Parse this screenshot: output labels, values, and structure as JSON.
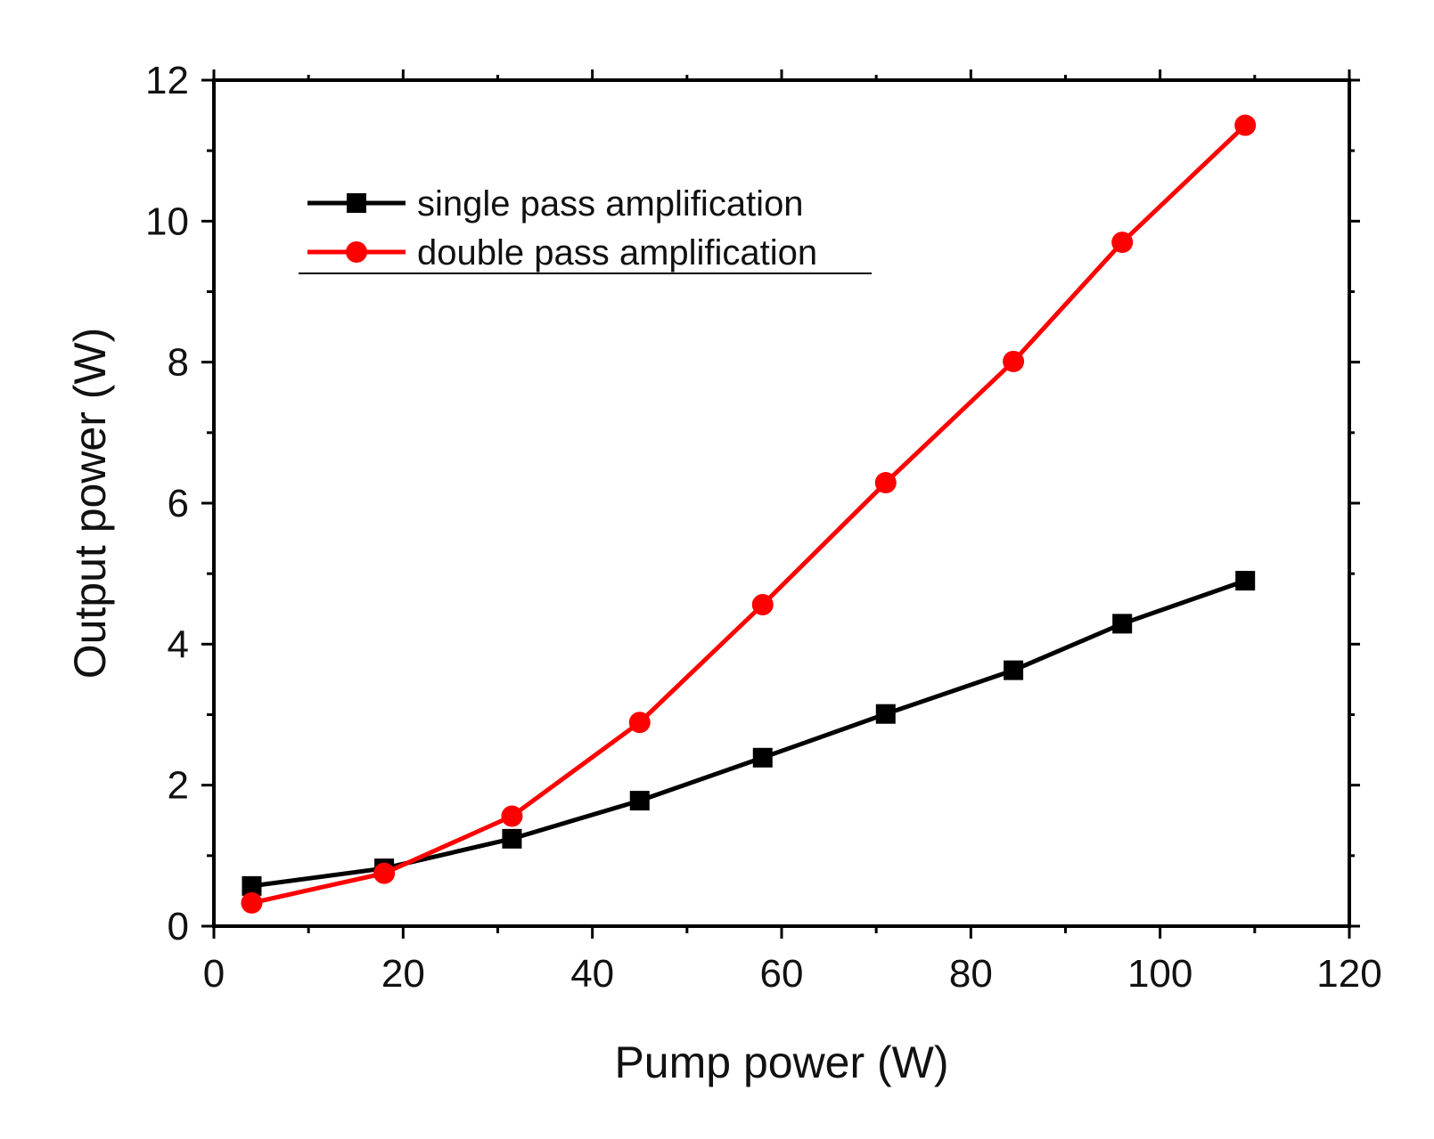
{
  "chart_data": {
    "type": "line",
    "title": "",
    "xlabel": "Pump power (W)",
    "ylabel": "Output power (W)",
    "xlim": [
      0,
      120
    ],
    "ylim": [
      0,
      12
    ],
    "xticks": [
      0,
      20,
      40,
      60,
      80,
      100,
      120
    ],
    "yticks": [
      0,
      2,
      4,
      6,
      8,
      10,
      12
    ],
    "xtick_labels": [
      "0",
      "20",
      "40",
      "60",
      "80",
      "100",
      "120"
    ],
    "ytick_labels": [
      "0",
      "2",
      "4",
      "6",
      "8",
      "10",
      "12"
    ],
    "grid": false,
    "legend_position": "top-left",
    "series": [
      {
        "name": "single pass amplification",
        "color": "#000000",
        "marker": "square",
        "x": [
          4,
          18,
          31.5,
          45,
          58,
          71,
          84.5,
          96,
          109
        ],
        "y": [
          0.57,
          0.82,
          1.24,
          1.78,
          2.39,
          3.01,
          3.63,
          4.29,
          4.9
        ]
      },
      {
        "name": "double pass amplification",
        "color": "#ff0000",
        "marker": "circle",
        "x": [
          4,
          18,
          31.5,
          45,
          58,
          71,
          84.5,
          96,
          109
        ],
        "y": [
          0.33,
          0.75,
          1.56,
          2.89,
          4.56,
          6.29,
          8.01,
          9.7,
          11.36
        ]
      }
    ]
  }
}
